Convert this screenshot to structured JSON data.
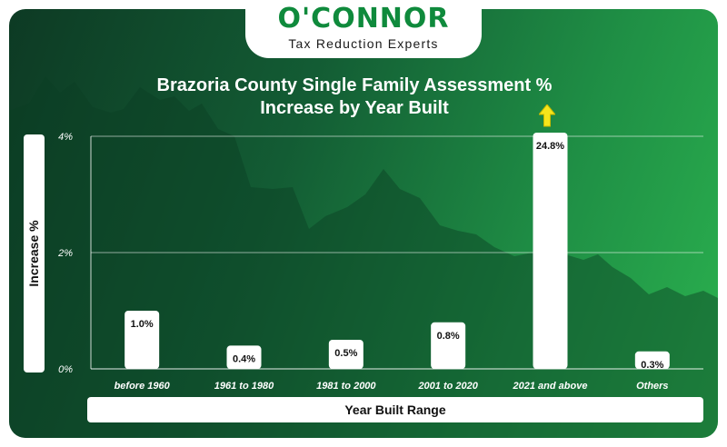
{
  "brand": {
    "name": "O'CONNOR",
    "tagline": "Tax Reduction Experts"
  },
  "colors": {
    "brand_green": "#0f8a3c",
    "background_dark": "#0d3a24",
    "background_light": "#2bb24f",
    "bar": "#ffffff",
    "arrow": "#f5e51b"
  },
  "chart_data": {
    "type": "bar",
    "title": "Brazoria County Single Family Assessment % Increase by Year Built",
    "title_lines": [
      "Brazoria County Single Family Assessment %",
      "Increase by Year Built"
    ],
    "xlabel": "Year Built Range",
    "ylabel": "Increase %",
    "categories": [
      "before 1960",
      "1961 to 1980",
      "1981 to 2000",
      "2001 to 2020",
      "2021 and above",
      "Others"
    ],
    "values": [
      1.0,
      0.4,
      0.5,
      0.8,
      24.8,
      0.3
    ],
    "value_labels": [
      "1.0%",
      "0.4%",
      "0.5%",
      "0.8%",
      "24.8%",
      "0.3%"
    ],
    "y_ticks": [
      0,
      2,
      4
    ],
    "y_tick_labels": [
      "0%",
      "2%",
      "4%"
    ],
    "ylim": [
      0,
      4
    ],
    "grid": true,
    "legend": "none",
    "truncated_bar_note": "bar exceeds axis, marked with upward arrow",
    "arrow_icon": "up-arrow-icon"
  }
}
